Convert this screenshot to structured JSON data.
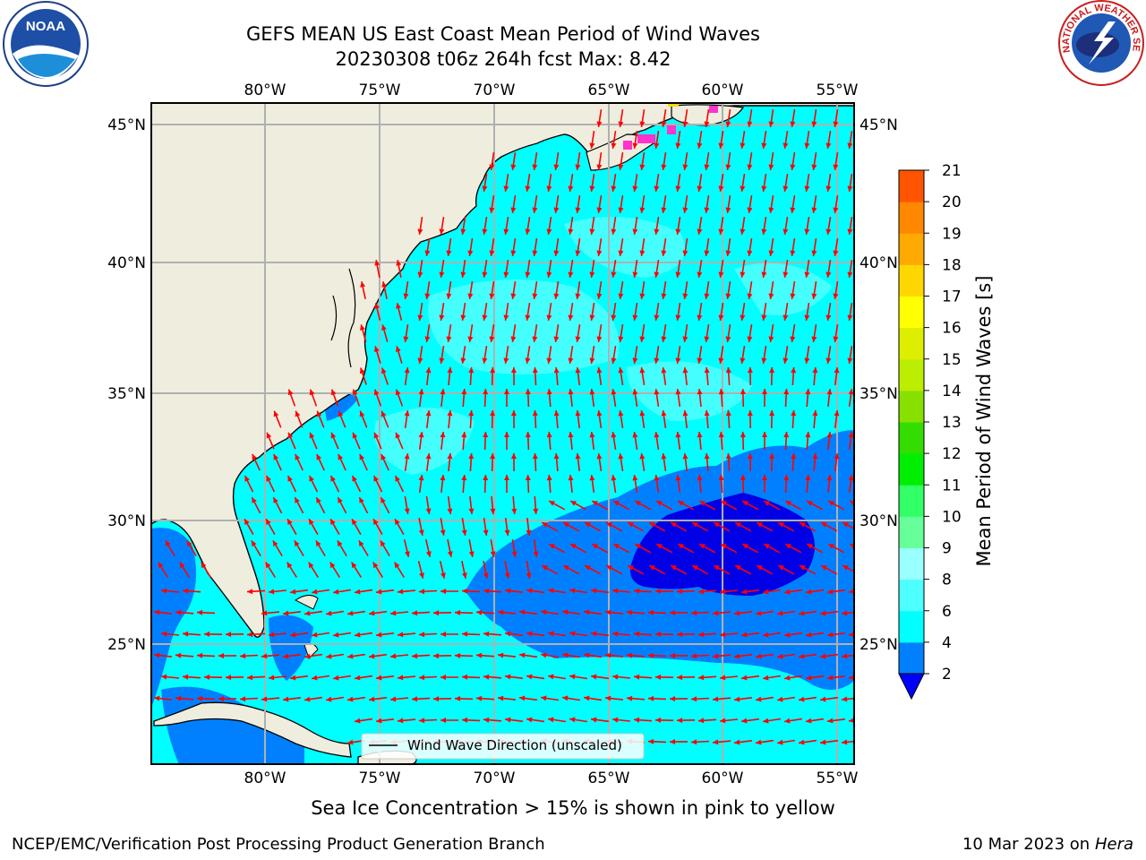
{
  "title": {
    "line1": "GEFS MEAN US East Coast Mean Period of Wind Waves",
    "line2": "20230308 t06z 264h fcst   Max: 8.42"
  },
  "logos": {
    "left": {
      "icon": "noaa-logo-icon",
      "text": "NOAA"
    },
    "right": {
      "icon": "nws-logo-icon",
      "text": "NATIONAL WEATHER SERVICE"
    }
  },
  "map": {
    "lon_labels": [
      "80°W",
      "75°W",
      "70°W",
      "65°W",
      "60°W",
      "55°W"
    ],
    "lat_labels": [
      "45°N",
      "40°N",
      "35°N",
      "30°N",
      "25°N"
    ],
    "legend_label": "Wind Wave Direction (unscaled)",
    "colors": {
      "land": "#efedde",
      "cyan": "#00ffff",
      "light_cyan": "#4dffff",
      "blue": "#0080ff",
      "dark_blue": "#0000e6",
      "ice": "#ff33cc",
      "arrow": "#ff0000"
    }
  },
  "colorbar": {
    "label": "Mean Period of Wind Waves [s]",
    "ticks": [
      "2",
      "4",
      "6",
      "8",
      "9",
      "10",
      "11",
      "12",
      "13",
      "14",
      "15",
      "16",
      "17",
      "18",
      "19",
      "20",
      "21"
    ],
    "colors": [
      "#0080ff",
      "#00ffff",
      "#4dffff",
      "#99ffff",
      "#66ff99",
      "#33ff66",
      "#00ee00",
      "#33dd00",
      "#88e000",
      "#bbee00",
      "#ddee00",
      "#ffff00",
      "#ffd700",
      "#ffaa00",
      "#ff8800",
      "#ff5500",
      "#ff2200",
      "#ff0000"
    ],
    "extend_color": "#0000ff"
  },
  "footer": {
    "note": "Sea Ice Concentration > 15% is shown in pink to yellow",
    "left": "NCEP/EMC/Verification Post Processing Product Generation Branch",
    "right_date": "10 Mar 2023 on",
    "right_host": "Hera"
  }
}
